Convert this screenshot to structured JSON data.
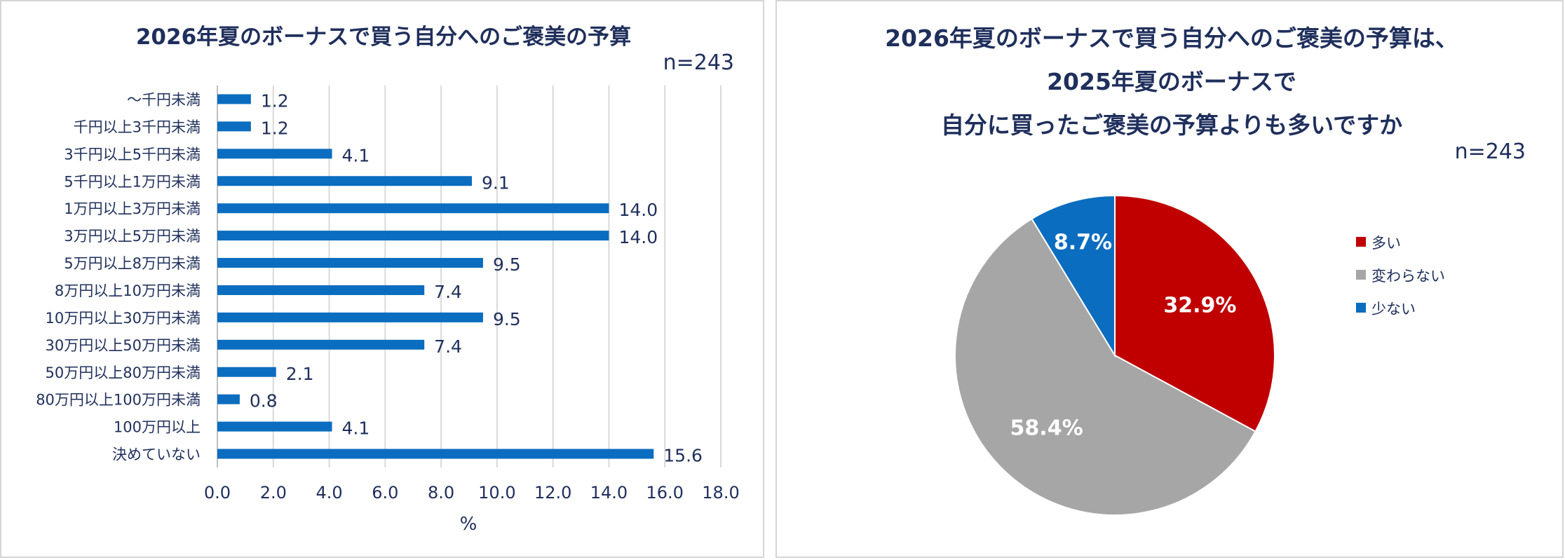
{
  "bar_chart": {
    "title": "2026年夏のボーナスで買う自分へのご褒美の予算",
    "n_label": "n=243",
    "xlabel": "%"
  },
  "pie_chart": {
    "title_lines": [
      "2026年夏のボーナスで買う自分へのご褒美の予算は、",
      "2025年夏のボーナスで",
      "自分に買ったご褒美の予算よりも多いですか"
    ],
    "n_label": "n=243"
  },
  "chart_data": [
    {
      "type": "bar",
      "orientation": "horizontal",
      "title": "2026年夏のボーナスで買う自分へのご褒美の予算",
      "annotation": "n=243",
      "xlabel": "%",
      "ylabel": "",
      "categories": [
        "～千円未満",
        "千円以上3千円未満",
        "3千円以上5千円未満",
        "5千円以上1万円未満",
        "1万円以上3万円未満",
        "3万円以上5万円未満",
        "5万円以上8万円未満",
        "8万円以上10万円未満",
        "10万円以上30万円未満",
        "30万円以上50万円未満",
        "50万円以上80万円未満",
        "80万円以上100万円未満",
        "100万円以上",
        "決めていない"
      ],
      "values": [
        1.2,
        1.2,
        4.1,
        9.1,
        14.0,
        14.0,
        9.5,
        7.4,
        9.5,
        7.4,
        2.1,
        0.8,
        4.1,
        15.6
      ],
      "value_labels": [
        "1.2",
        "1.2",
        "4.1",
        "9.1",
        "14.0",
        "14.0",
        "9.5",
        "7.4",
        "9.5",
        "7.4",
        "2.1",
        "0.8",
        "4.1",
        "15.6"
      ],
      "xlim": [
        0,
        18
      ],
      "xticks": [
        "0.0",
        "2.0",
        "4.0",
        "6.0",
        "8.0",
        "10.0",
        "12.0",
        "14.0",
        "16.0",
        "18.0"
      ],
      "grid": "vertical",
      "color": "#0b6dbf"
    },
    {
      "type": "pie",
      "title": "2026年夏のボーナスで買う自分へのご褒美の予算は、2025年夏のボーナスで自分に買ったご褒美の予算よりも多いですか",
      "annotation": "n=243",
      "categories": [
        "多い",
        "変わらない",
        "少ない"
      ],
      "values": [
        32.9,
        58.4,
        8.7
      ],
      "value_labels": [
        "32.9%",
        "58.4%",
        "8.7%"
      ],
      "colors": [
        "#c00000",
        "#a6a6a6",
        "#0b6dbf"
      ],
      "legend_position": "right"
    }
  ]
}
